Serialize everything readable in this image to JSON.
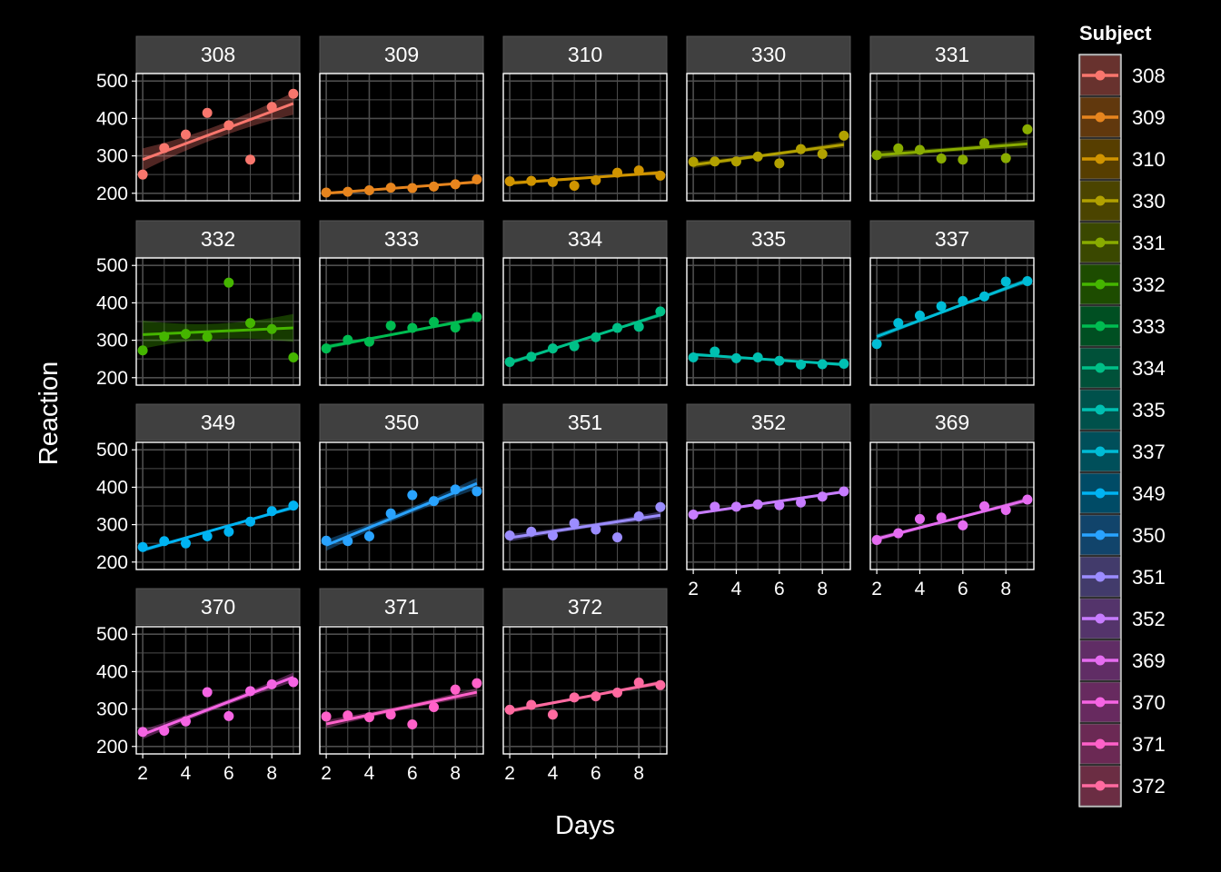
{
  "chart_data": {
    "type": "scatter",
    "title": "",
    "xlabel": "Days",
    "ylabel": "Reaction",
    "xlim": [
      1.7,
      9.3
    ],
    "ylim": [
      180,
      520
    ],
    "x_ticks": [
      2,
      4,
      6,
      8
    ],
    "y_ticks": [
      200,
      300,
      400,
      500
    ],
    "grid": true,
    "legend": {
      "title": "Subject",
      "placement": "right"
    },
    "background": "#000000",
    "panel_border": "#ffffff",
    "grid_color": "#4d4d4d",
    "strip_fill": "#404040",
    "facets": [
      {
        "subject": "308",
        "color": "#F8766D",
        "x": [
          2,
          3,
          4,
          5,
          6,
          7,
          8,
          9
        ],
        "y": [
          250,
          321,
          357,
          415,
          382,
          290,
          431,
          466
        ],
        "fit": [
          290,
          440
        ],
        "band": 60
      },
      {
        "subject": "309",
        "color": "#E7851E",
        "x": [
          2,
          3,
          4,
          5,
          6,
          7,
          8,
          9
        ],
        "y": [
          202,
          204,
          208,
          215,
          214,
          218,
          224,
          237
        ],
        "fit": [
          200,
          230
        ],
        "band": 9
      },
      {
        "subject": "310",
        "color": "#D09400",
        "x": [
          2,
          3,
          4,
          5,
          6,
          7,
          8,
          9
        ],
        "y": [
          232,
          233,
          230,
          220,
          235,
          255,
          261,
          247
        ],
        "fit": [
          227,
          255
        ],
        "band": 12
      },
      {
        "subject": "330",
        "color": "#B2A100",
        "x": [
          2,
          3,
          4,
          5,
          6,
          7,
          8,
          9
        ],
        "y": [
          284,
          285,
          285,
          298,
          280,
          318,
          305,
          354
        ],
        "fit": [
          276,
          330
        ],
        "band": 17
      },
      {
        "subject": "331",
        "color": "#89AC00",
        "x": [
          2,
          3,
          4,
          5,
          6,
          7,
          8,
          9
        ],
        "y": [
          302,
          320,
          316,
          293,
          290,
          334,
          294,
          371
        ],
        "fit": [
          302,
          332
        ],
        "band": 22
      },
      {
        "subject": "332",
        "color": "#45B500",
        "x": [
          2,
          3,
          4,
          5,
          6,
          7,
          8,
          9
        ],
        "y": [
          273,
          310,
          317,
          309,
          454,
          346,
          330,
          254
        ],
        "fit": [
          315,
          333
        ],
        "band": 75
      },
      {
        "subject": "333",
        "color": "#00BC51",
        "x": [
          2,
          3,
          4,
          5,
          6,
          7,
          8,
          9
        ],
        "y": [
          278,
          301,
          296,
          339,
          333,
          349,
          334,
          362
        ],
        "fit": [
          282,
          358
        ],
        "band": 13
      },
      {
        "subject": "334",
        "color": "#00C087",
        "x": [
          2,
          3,
          4,
          5,
          6,
          7,
          8,
          9
        ],
        "y": [
          242,
          256,
          278,
          284,
          308,
          333,
          336,
          377
        ],
        "fit": [
          240,
          368
        ],
        "band": 12
      },
      {
        "subject": "335",
        "color": "#00C0B2",
        "x": [
          2,
          3,
          4,
          5,
          6,
          7,
          8,
          9
        ],
        "y": [
          254,
          270,
          252,
          254,
          245,
          235,
          236,
          237
        ],
        "fit": [
          262,
          235
        ],
        "band": 10
      },
      {
        "subject": "337",
        "color": "#00BCD6",
        "x": [
          2,
          3,
          4,
          5,
          6,
          7,
          8,
          9
        ],
        "y": [
          290,
          346,
          366,
          391,
          405,
          417,
          457,
          458
        ],
        "fit": [
          310,
          460
        ],
        "band": 15
      },
      {
        "subject": "349",
        "color": "#00B3F2",
        "x": [
          2,
          3,
          4,
          5,
          6,
          7,
          8,
          9
        ],
        "y": [
          240,
          256,
          250,
          269,
          281,
          308,
          336,
          351
        ],
        "fit": [
          232,
          346
        ],
        "band": 12
      },
      {
        "subject": "350",
        "color": "#29A3FF",
        "x": [
          2,
          3,
          4,
          5,
          6,
          7,
          8,
          9
        ],
        "y": [
          257,
          256,
          269,
          330,
          379,
          363,
          394,
          389
        ],
        "fit": [
          245,
          410
        ],
        "band": 30
      },
      {
        "subject": "351",
        "color": "#9C8DFF",
        "x": [
          2,
          3,
          4,
          5,
          6,
          7,
          8,
          9
        ],
        "y": [
          271,
          281,
          271,
          304,
          287,
          266,
          322,
          347
        ],
        "fit": [
          265,
          325
        ],
        "band": 20
      },
      {
        "subject": "352",
        "color": "#C77CFF",
        "x": [
          2,
          3,
          4,
          5,
          6,
          7,
          8,
          9
        ],
        "y": [
          327,
          348,
          348,
          354,
          352,
          359,
          375,
          389
        ],
        "fit": [
          329,
          388
        ],
        "band": 9
      },
      {
        "subject": "369",
        "color": "#E56CF0",
        "x": [
          2,
          3,
          4,
          5,
          6,
          7,
          8,
          9
        ],
        "y": [
          259,
          277,
          315,
          319,
          298,
          349,
          339,
          367
        ],
        "fit": [
          262,
          366
        ],
        "band": 14
      },
      {
        "subject": "370",
        "color": "#F564E3",
        "x": [
          2,
          3,
          4,
          5,
          6,
          7,
          8,
          9
        ],
        "y": [
          239,
          242,
          267,
          345,
          281,
          348,
          366,
          372
        ],
        "fit": [
          232,
          385
        ],
        "band": 25
      },
      {
        "subject": "371",
        "color": "#FF61C9",
        "x": [
          2,
          3,
          4,
          5,
          6,
          7,
          8,
          9
        ],
        "y": [
          280,
          283,
          278,
          285,
          259,
          305,
          352,
          369
        ],
        "fit": [
          260,
          345
        ],
        "band": 22
      },
      {
        "subject": "372",
        "color": "#FF6AA0",
        "x": [
          2,
          3,
          4,
          5,
          6,
          7,
          8,
          9
        ],
        "y": [
          298,
          311,
          285,
          331,
          334,
          344,
          371,
          364
        ],
        "fit": [
          295,
          370
        ],
        "band": 13
      }
    ]
  }
}
